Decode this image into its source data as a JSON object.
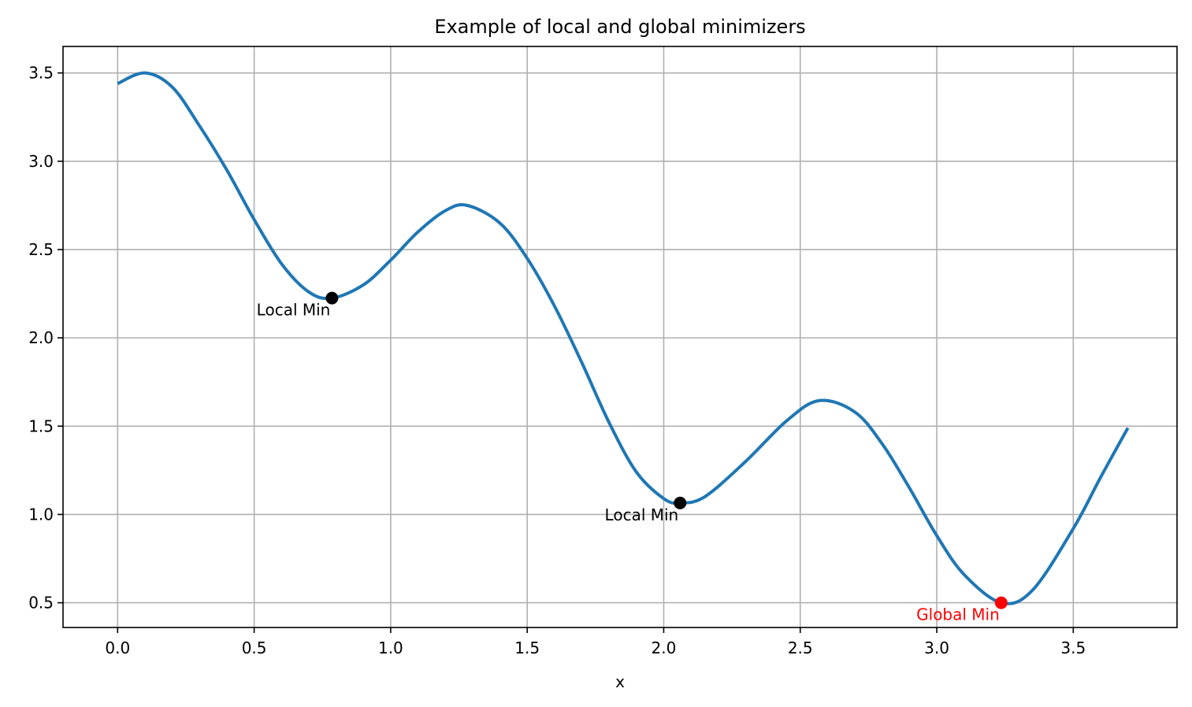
{
  "chart_data": {
    "type": "line",
    "title": "Example of local and global minimizers",
    "xlabel": "x",
    "ylabel": "",
    "xlim": [
      -0.2,
      3.88
    ],
    "ylim": [
      0.36,
      3.65
    ],
    "xticks": [
      0.0,
      0.5,
      1.0,
      1.5,
      2.0,
      2.5,
      3.0,
      3.5
    ],
    "xtick_labels": [
      "0.0",
      "0.5",
      "1.0",
      "1.5",
      "2.0",
      "2.5",
      "3.0",
      "3.5"
    ],
    "yticks": [
      0.5,
      1.0,
      1.5,
      2.0,
      2.5,
      3.0,
      3.5
    ],
    "ytick_labels": [
      "0.5",
      "1.0",
      "1.5",
      "2.0",
      "2.5",
      "3.0",
      "3.5"
    ],
    "grid": true,
    "series": [
      {
        "color": "#1f77b4",
        "x": [
          0.0,
          0.1,
          0.2,
          0.3,
          0.4,
          0.5,
          0.6,
          0.7,
          0.785,
          0.9,
          1.0,
          1.1,
          1.2,
          1.28,
          1.4,
          1.5,
          1.6,
          1.7,
          1.8,
          1.9,
          2.0,
          2.06,
          2.15,
          2.3,
          2.45,
          2.57,
          2.7,
          2.8,
          2.9,
          3.0,
          3.1,
          3.236,
          3.35,
          3.5,
          3.6,
          3.7
        ],
        "y": [
          3.44,
          3.5,
          3.42,
          3.2,
          2.95,
          2.67,
          2.42,
          2.26,
          2.225,
          2.3,
          2.44,
          2.6,
          2.72,
          2.75,
          2.65,
          2.45,
          2.18,
          1.86,
          1.52,
          1.24,
          1.09,
          1.065,
          1.1,
          1.3,
          1.53,
          1.645,
          1.58,
          1.4,
          1.15,
          0.88,
          0.66,
          0.5,
          0.57,
          0.92,
          1.21,
          1.49
        ]
      }
    ],
    "points": [
      {
        "x": 0.785,
        "y": 2.225,
        "color": "#000000",
        "label": "Local Min"
      },
      {
        "x": 2.06,
        "y": 1.065,
        "color": "#000000",
        "label": "Local Min"
      },
      {
        "x": 3.236,
        "y": 0.5,
        "color": "#ff0000",
        "label": "Global Min"
      }
    ]
  }
}
